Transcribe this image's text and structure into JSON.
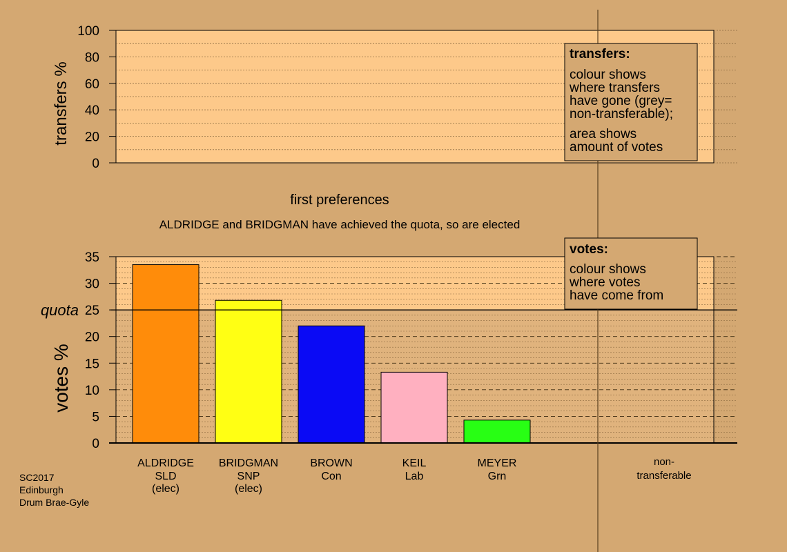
{
  "title": "first preferences",
  "subtitle": "ALDRIDGE and BRIDGMAN have achieved the quota, so are elected",
  "footer": [
    "SC2017",
    "Edinburgh",
    "Drum Brae-Gyle"
  ],
  "colors": {
    "background": "#d4a872",
    "plot_area": "#fdc98a",
    "dotted_band": "#e0b37d",
    "quota_band": "#ddb078"
  },
  "transfers_legend": {
    "heading": "transfers:",
    "lines": [
      "colour shows",
      "where transfers",
      "have gone (grey=",
      "non-transferable);"
    ],
    "lines2": [
      "area shows",
      "amount of votes"
    ]
  },
  "votes_legend": {
    "heading": "votes:",
    "lines": [
      "colour shows",
      "where votes",
      "have come from"
    ]
  },
  "chart_data": [
    {
      "type": "bar",
      "ylabel": "transfers %",
      "ylim": [
        0,
        100
      ],
      "yticks": [
        0,
        20,
        40,
        60,
        80,
        100
      ],
      "values": []
    },
    {
      "type": "bar",
      "ylabel": "votes %",
      "ylim": [
        0,
        35
      ],
      "yticks": [
        0,
        5,
        10,
        15,
        20,
        25,
        30,
        35
      ],
      "quota": 25,
      "quota_label": "quota",
      "categories": [
        {
          "name": "ALDRIDGE",
          "party": "SLD",
          "status": "(elec)"
        },
        {
          "name": "BRIDGMAN",
          "party": "SNP",
          "status": "(elec)"
        },
        {
          "name": "BROWN",
          "party": "Con",
          "status": ""
        },
        {
          "name": "KEIL",
          "party": "Lab",
          "status": ""
        },
        {
          "name": "MEYER",
          "party": "Grn",
          "status": ""
        }
      ],
      "values": [
        33.5,
        26.8,
        22.0,
        13.3,
        4.3
      ],
      "colors": [
        "#ff8c0a",
        "#ffff14",
        "#0a0af5",
        "#ffb0c0",
        "#28ff14"
      ],
      "extra_category": {
        "line1": "non-",
        "line2": "transferable"
      }
    }
  ]
}
